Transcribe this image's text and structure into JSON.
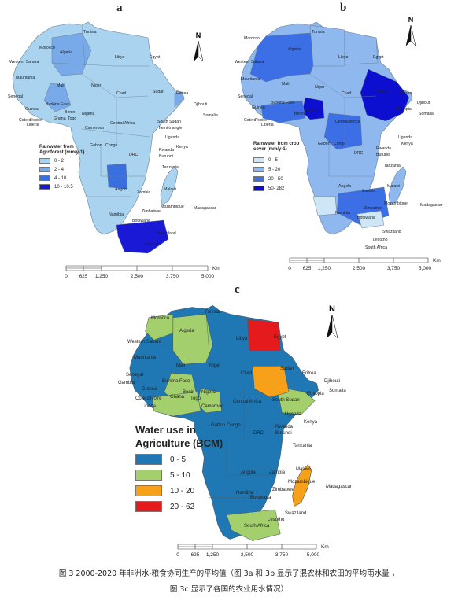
{
  "panels": [
    {
      "label": "a",
      "legend": {
        "title_line1": "Rainwater from",
        "title_line2": "Agroforest (mm/y-1)",
        "classes": [
          {
            "label": "0 - 2",
            "color": "#a9d3ee"
          },
          {
            "label": "2 - 4",
            "color": "#78a9e8"
          },
          {
            "label": "4 - 10",
            "color": "#3a6fe0"
          },
          {
            "label": "10 - 10.5",
            "color": "#1a1ad6"
          }
        ]
      },
      "north": "N",
      "scale": {
        "ticks": [
          "0",
          "625",
          "1,250",
          "2,500",
          "3,750",
          "5,000"
        ],
        "unit": "Km"
      }
    },
    {
      "label": "b",
      "legend": {
        "title_line1": "Rainwater from crop",
        "title_line2": "cover (mm/y-1)",
        "classes": [
          {
            "label": "0 - 5",
            "color": "#cfe6f7"
          },
          {
            "label": "5 - 20",
            "color": "#8fb8ee"
          },
          {
            "label": "20 - 50",
            "color": "#3c6fe6"
          },
          {
            "label": "50- 282",
            "color": "#0c0fcf"
          }
        ]
      },
      "north": "N",
      "scale": {
        "ticks": [
          "0",
          "625",
          "1,250",
          "2,500",
          "3,750",
          "5,000"
        ],
        "unit": "Km"
      }
    },
    {
      "label": "c",
      "legend": {
        "title_line1": "Water use in",
        "title_line2": "Agriculture (BCM)",
        "classes": [
          {
            "label": "0 - 5",
            "color": "#1f78b4"
          },
          {
            "label": "5 - 10",
            "color": "#a3cf6d"
          },
          {
            "label": "10 - 20",
            "color": "#f7a11a"
          },
          {
            "label": "20 - 62",
            "color": "#e41a1c"
          }
        ]
      },
      "north": "N",
      "scale": {
        "ticks": [
          "0",
          "625",
          "1,250",
          "2,500",
          "3,750",
          "5,000"
        ],
        "unit": "Km"
      }
    }
  ],
  "countries": {
    "tunisia": "Tunisia",
    "morocco": "Morocco",
    "algeria": "Algeria",
    "libya": "Libya",
    "egypt": "Egypt",
    "western_sahara": "Western Sahara",
    "mauritania": "Mauritania",
    "mali": "Mali",
    "niger": "Niger",
    "chad": "Chad",
    "sudan": "Sudan",
    "eritrea": "Eritrea",
    "senegal": "Senegal",
    "gambia": "Gambia",
    "guinea": "Guinea",
    "burkina_faso": "Burkina Faso",
    "benin": "Benin",
    "nigeria": "Nigeria",
    "cote_divoire": "Cote d'Ivoire",
    "ghana": "Ghana",
    "togo": "Togo",
    "liberia": "Liberia",
    "djibouti": "Djibouti",
    "somalia": "Somalia",
    "ethiopia": "Ethiopia",
    "ilemi": "Ilemi triangle",
    "central_africa": "Central Africa",
    "south_sudan": "South Sudan",
    "cameroon": "Cameroon",
    "gabon": "Gabon",
    "congo": "Congo",
    "uganda": "Uganda",
    "kenya": "Kenya",
    "drc": "DRC",
    "rwanda": "Rwanda",
    "burundi": "Burundi",
    "tanzania": "Tanzania",
    "angola": "Angola",
    "zambia": "Zambia",
    "malawi": "Malawi",
    "mozambique": "Mozambique",
    "madagascar": "Madagascar",
    "namibia": "Namibia",
    "zimbabwe": "Zimbabwe",
    "botswana": "Botswana",
    "swaziland": "Swaziland",
    "lesotho": "Lesotho",
    "south_africa": "South Africa"
  },
  "caption_line1": "图 3 2000-2020 年非洲水-粮食协同生产的平均值（图 3a 和 3b 显示了混农林和农田的平均雨水量 ，",
  "caption_line2": "图 3c 显示了各国的农业用水情况）"
}
